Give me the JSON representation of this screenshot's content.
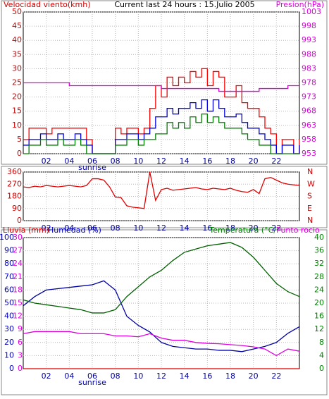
{
  "chart_data": [
    {
      "type": "line",
      "title": "Current last 24 hours : 15.Julio 2005",
      "y_label": "Velocidad viento(kmh)",
      "y2_label": "Presion(hPa)",
      "sunrise": {
        "x": 6,
        "label": "sunrise"
      },
      "x": [
        0,
        0.5,
        1,
        1.5,
        2,
        2.5,
        3,
        3.5,
        4,
        4.5,
        5,
        5.5,
        6,
        6.5,
        7,
        7.5,
        8,
        8.5,
        9,
        9.5,
        10,
        10.5,
        11,
        11.5,
        12,
        12.5,
        13,
        13.5,
        14,
        14.5,
        15,
        15.5,
        16,
        16.5,
        17,
        17.5,
        18,
        18.5,
        19,
        19.5,
        20,
        20.5,
        21,
        21.5,
        22,
        22.5,
        23,
        23.5,
        24
      ],
      "xlim": [
        0,
        24
      ],
      "xticks": [
        {
          "value": 2,
          "label": "02"
        },
        {
          "value": 4,
          "label": "04"
        },
        {
          "value": 6,
          "label": "06"
        },
        {
          "value": 8,
          "label": "08"
        },
        {
          "value": 10,
          "label": "10"
        },
        {
          "value": 12,
          "label": "12"
        },
        {
          "value": 14,
          "label": "14"
        },
        {
          "value": 16,
          "label": "16"
        },
        {
          "value": 18,
          "label": "18"
        },
        {
          "value": 20,
          "label": "20"
        },
        {
          "value": 22,
          "label": "22"
        }
      ],
      "ylim": [
        0,
        50
      ],
      "yticks": [
        0,
        5,
        10,
        15,
        20,
        25,
        30,
        35,
        40,
        45,
        50
      ],
      "ytick_color": "#d00000",
      "y2lim": [
        953,
        1003
      ],
      "y2ticks": [
        953,
        958,
        963,
        968,
        973,
        978,
        983,
        988,
        993,
        998,
        1003
      ],
      "y2tick_color": "#e000e0",
      "step": true,
      "grid": true,
      "series": [
        {
          "name": "gust",
          "color": "#ff0000",
          "axis": "y",
          "values": [
            5,
            9,
            9,
            9,
            7,
            9,
            9,
            9,
            9,
            9,
            9,
            5,
            0,
            0,
            0,
            0,
            9,
            7,
            9,
            9,
            7,
            9,
            16,
            24,
            20,
            27,
            24,
            27,
            25,
            29,
            27,
            30,
            24,
            29,
            27,
            20,
            20,
            24,
            18,
            16,
            16,
            13,
            9,
            7,
            0,
            5,
            5,
            0,
            5
          ]
        },
        {
          "name": "average",
          "color": "#0000e0",
          "axis": "y",
          "values": [
            3,
            5,
            5,
            7,
            5,
            5,
            7,
            5,
            5,
            7,
            5,
            3,
            0,
            0,
            0,
            0,
            5,
            5,
            7,
            7,
            5,
            7,
            9,
            13,
            13,
            16,
            14,
            16,
            16,
            18,
            16,
            19,
            15,
            19,
            16,
            13,
            13,
            14,
            11,
            9,
            9,
            7,
            5,
            3,
            0,
            3,
            3,
            0,
            3
          ]
        },
        {
          "name": "min",
          "color": "#008000",
          "axis": "y",
          "values": [
            0,
            3,
            3,
            5,
            3,
            3,
            5,
            3,
            3,
            5,
            3,
            0,
            0,
            0,
            0,
            0,
            3,
            3,
            5,
            5,
            3,
            5,
            5,
            7,
            7,
            11,
            9,
            11,
            9,
            13,
            11,
            14,
            11,
            13,
            11,
            9,
            9,
            9,
            7,
            5,
            5,
            3,
            3,
            0,
            0,
            0,
            0,
            0,
            0
          ]
        },
        {
          "name": "pressure",
          "color": "#e000e0",
          "axis": "y2",
          "values": [
            978,
            978,
            978,
            978,
            978,
            978,
            978,
            978,
            977,
            977,
            977,
            977,
            977,
            977,
            977,
            977,
            977,
            977,
            977,
            977,
            977,
            977,
            977,
            977,
            976,
            976,
            976,
            976,
            976,
            976,
            976,
            976,
            976,
            976,
            975,
            975,
            975,
            975,
            975,
            975,
            975,
            976,
            976,
            976,
            976,
            976,
            977,
            977,
            977
          ]
        }
      ]
    },
    {
      "type": "line",
      "x": [
        0,
        0.5,
        1,
        1.5,
        2,
        2.5,
        3,
        3.5,
        4,
        4.5,
        5,
        5.5,
        6,
        6.5,
        7,
        7.5,
        8,
        8.5,
        9,
        9.5,
        10,
        10.5,
        11,
        11.5,
        12,
        12.5,
        13,
        13.5,
        14,
        14.5,
        15,
        15.5,
        16,
        16.5,
        17,
        17.5,
        18,
        18.5,
        19,
        19.5,
        20,
        20.5,
        21,
        21.5,
        22,
        22.5,
        23,
        23.5,
        24
      ],
      "xlim": [
        0,
        24
      ],
      "xticks": [
        {
          "value": 2,
          "label": "02"
        },
        {
          "value": 4,
          "label": "04"
        },
        {
          "value": 6,
          "label": "06"
        },
        {
          "value": 8,
          "label": "08"
        },
        {
          "value": 10,
          "label": "10"
        },
        {
          "value": 12,
          "label": "12"
        },
        {
          "value": 14,
          "label": "14"
        },
        {
          "value": 16,
          "label": "16"
        },
        {
          "value": 18,
          "label": "18"
        },
        {
          "value": 20,
          "label": "20"
        },
        {
          "value": 22,
          "label": "22"
        }
      ],
      "ylim": [
        0,
        360
      ],
      "yticks": [
        0,
        90,
        180,
        270,
        360
      ],
      "ytick_color": "#d00000",
      "y2lim": [
        0,
        360
      ],
      "y2ticks": [
        {
          "value": 0,
          "label": "N"
        },
        {
          "value": 90,
          "label": "E"
        },
        {
          "value": 180,
          "label": "S"
        },
        {
          "value": 270,
          "label": "W"
        },
        {
          "value": 360,
          "label": "N"
        }
      ],
      "y2tick_color": "#d00000",
      "step": false,
      "grid": true,
      "series": [
        {
          "name": "direction",
          "color": "#e00000",
          "axis": "y",
          "values": [
            250,
            245,
            255,
            250,
            260,
            255,
            250,
            255,
            260,
            255,
            250,
            260,
            310,
            310,
            300,
            250,
            175,
            170,
            110,
            100,
            95,
            90,
            360,
            150,
            230,
            240,
            225,
            230,
            235,
            240,
            245,
            235,
            230,
            240,
            235,
            230,
            240,
            225,
            215,
            210,
            230,
            200,
            310,
            320,
            300,
            280,
            270,
            265,
            260
          ]
        }
      ]
    },
    {
      "type": "line",
      "y_label": "Lluvia (mm)",
      "y3_label": "Humedad (%)",
      "y2_label": "Temperatura (°C/",
      "y4_label": "Punto rocio",
      "sunrise": {
        "x": 6,
        "label": "sunrise"
      },
      "x": [
        0,
        1,
        2,
        3,
        4,
        5,
        6,
        7,
        8,
        9,
        10,
        11,
        12,
        13,
        14,
        15,
        16,
        17,
        18,
        19,
        20,
        21,
        22,
        23,
        24
      ],
      "xlim": [
        0,
        24
      ],
      "xticks": [
        {
          "value": 2,
          "label": "02"
        },
        {
          "value": 4,
          "label": "04"
        },
        {
          "value": 6,
          "label": "06"
        },
        {
          "value": 8,
          "label": "08"
        },
        {
          "value": 10,
          "label": "10"
        },
        {
          "value": 12,
          "label": "12"
        },
        {
          "value": 14,
          "label": "14"
        },
        {
          "value": 16,
          "label": "16"
        },
        {
          "value": 18,
          "label": "18"
        },
        {
          "value": 20,
          "label": "20"
        },
        {
          "value": 22,
          "label": "22"
        }
      ],
      "ylim": [
        0,
        100
      ],
      "yticks": [
        0,
        10,
        20,
        30,
        40,
        50,
        60,
        70,
        80,
        90,
        100
      ],
      "ytick_color": "#0000c0",
      "y3lim": [
        0,
        30
      ],
      "y3ticks": [
        0,
        3,
        6,
        9,
        12,
        15,
        18,
        21,
        24,
        27,
        30
      ],
      "y3tick_color": "#e000e0",
      "y2lim": [
        0,
        40
      ],
      "y2ticks": [
        0,
        4,
        8,
        12,
        16,
        20,
        24,
        28,
        32,
        36,
        40
      ],
      "y2tick_color": "#008000",
      "step": false,
      "grid": true,
      "series": [
        {
          "name": "rain",
          "color": "#e00000",
          "axis": "y",
          "values": [
            0,
            0,
            0,
            0,
            0,
            0,
            0,
            0,
            0,
            0,
            0,
            0,
            0,
            0,
            0,
            0,
            0,
            0,
            0,
            0,
            0,
            0,
            0,
            0,
            0
          ]
        },
        {
          "name": "humidity",
          "color": "#0000a0",
          "axis": "y",
          "values": [
            48,
            55,
            60,
            61,
            62,
            63,
            64,
            67,
            60,
            40,
            33,
            28,
            20,
            17,
            16,
            15,
            15,
            14,
            14,
            13,
            15,
            17,
            20,
            27,
            32
          ]
        },
        {
          "name": "temperature",
          "color": "#006000",
          "axis": "y2",
          "values": [
            21,
            20,
            19.5,
            19,
            18.5,
            18,
            17,
            17,
            18,
            22,
            25,
            28,
            30,
            33,
            35.5,
            36.5,
            37.5,
            38,
            38.5,
            37,
            34,
            30,
            26,
            23.5,
            22
          ]
        },
        {
          "name": "dewpoint",
          "color": "#e000e0",
          "axis": "y3",
          "values": [
            8,
            8.5,
            8.5,
            8.5,
            8.5,
            8,
            8,
            8,
            7.5,
            7.5,
            7.3,
            8,
            7,
            6.5,
            6.5,
            6,
            5.8,
            5.7,
            5.5,
            5.3,
            5,
            4.5,
            3,
            4.5,
            4
          ]
        }
      ]
    }
  ]
}
